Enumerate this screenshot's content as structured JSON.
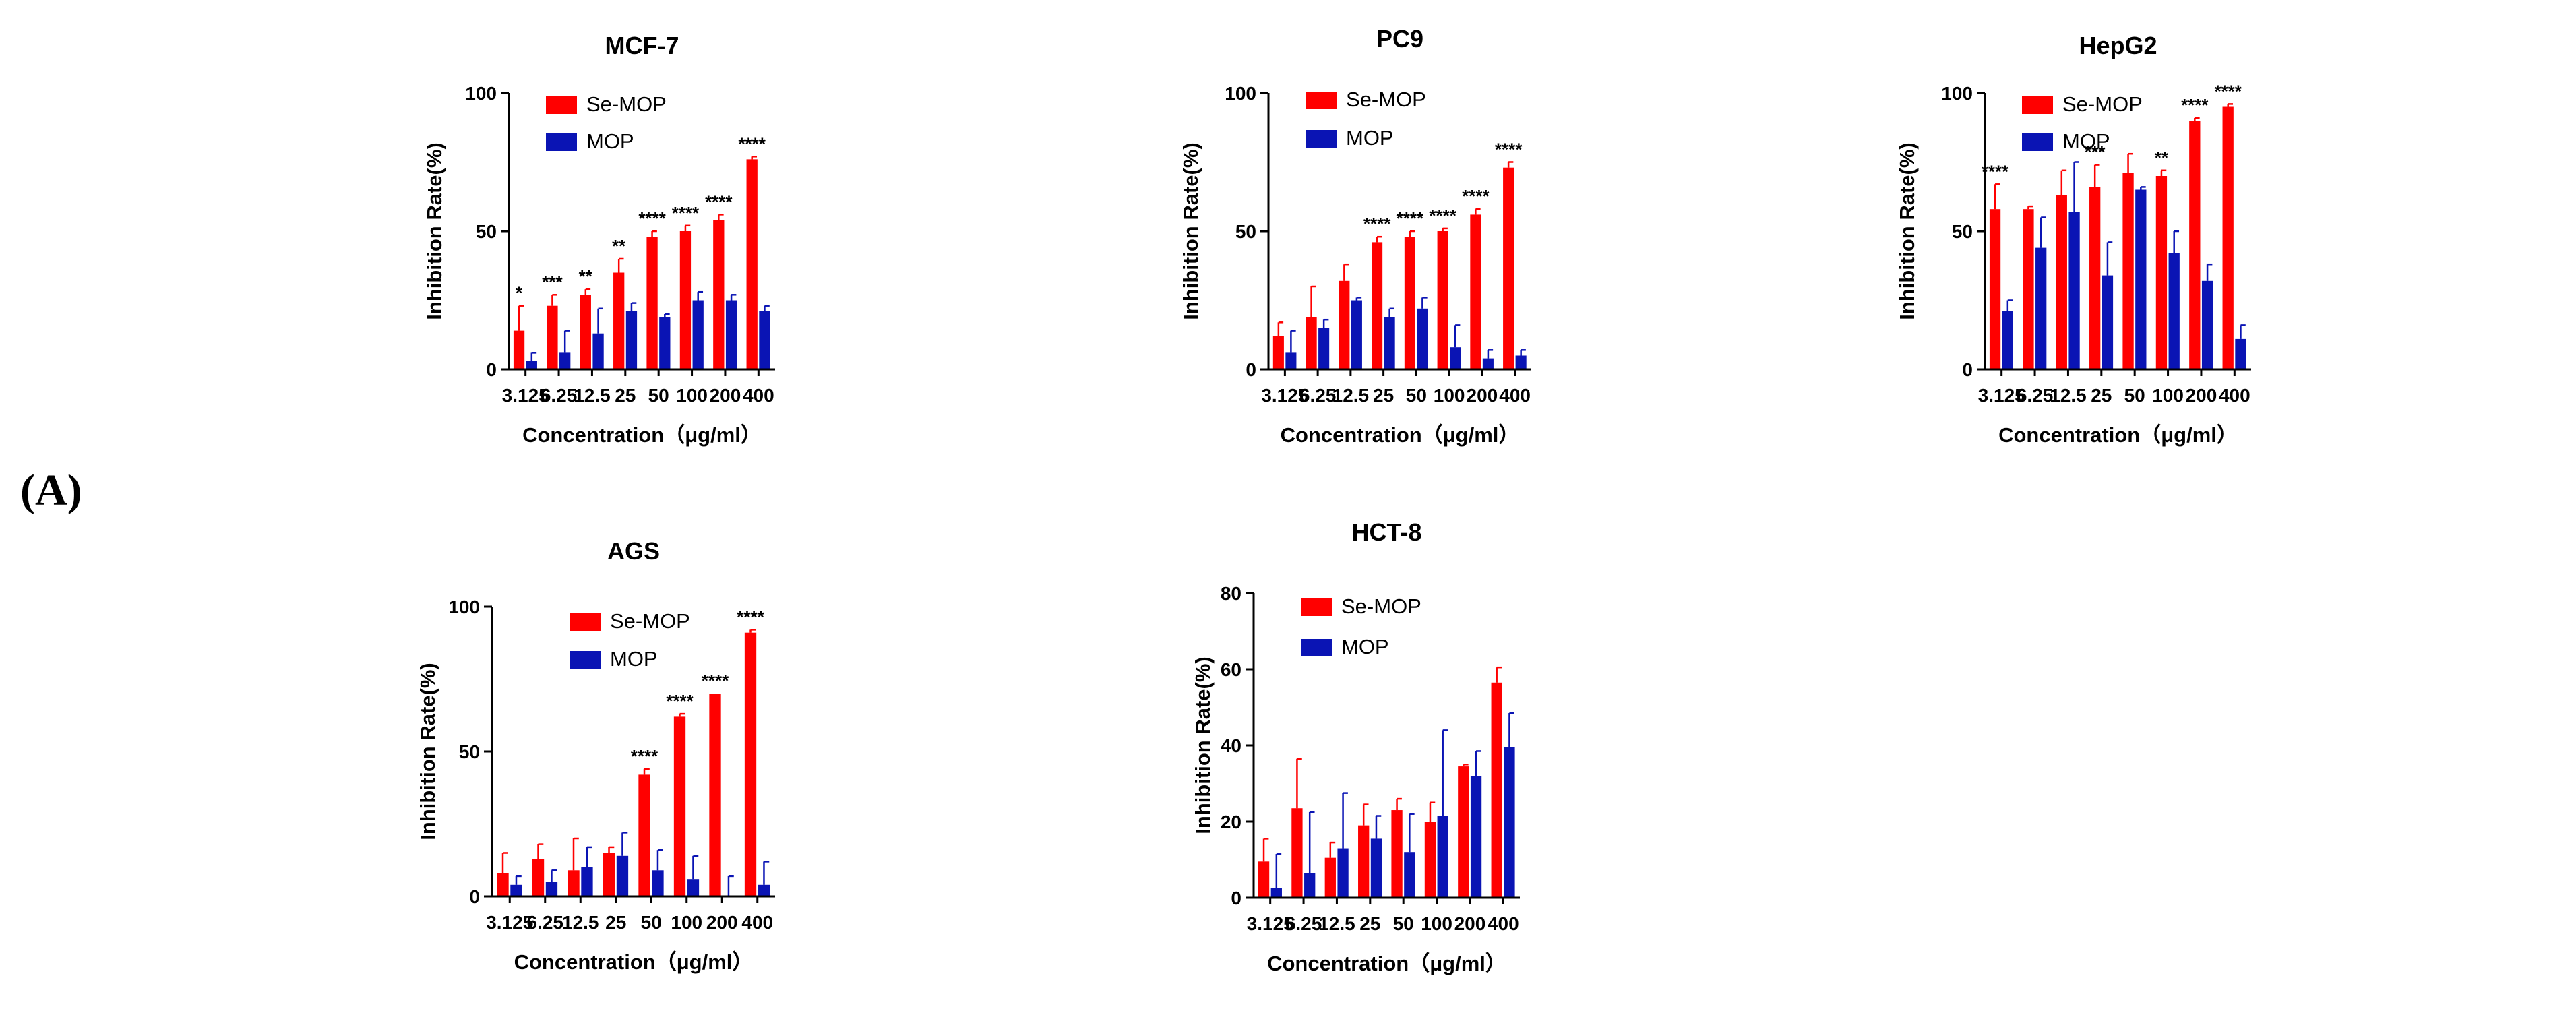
{
  "panel_label": "(A)",
  "colors": {
    "se_mop": "#ff0000",
    "mop": "#0a14b4",
    "axis": "#000000"
  },
  "chart_data": [
    {
      "type": "bar",
      "title": "MCF-7",
      "xlabel": "Concentration（μg/ml）",
      "ylabel": "Inhibition Rate(%)",
      "ylim": [
        0,
        100
      ],
      "yticks": [
        0,
        50,
        100
      ],
      "categories": [
        "3.125",
        "6.25",
        "12.5",
        "25",
        "50",
        "100",
        "200",
        "400"
      ],
      "series": [
        {
          "name": "Se-MOP",
          "values": [
            14,
            23,
            27,
            35,
            48,
            50,
            54,
            76
          ],
          "errors": [
            9,
            4,
            2,
            5,
            2,
            2,
            2,
            1
          ]
        },
        {
          "name": "MOP",
          "values": [
            3,
            6,
            13,
            21,
            19,
            25,
            25,
            21
          ],
          "errors": [
            3,
            8,
            9,
            3,
            1,
            3,
            2,
            2
          ]
        }
      ],
      "significance": [
        "*",
        "***",
        "**",
        "**",
        "****",
        "****",
        "****",
        "****"
      ]
    },
    {
      "type": "bar",
      "title": "PC9",
      "xlabel": "Concentration（μg/ml）",
      "ylabel": "Inhibition Rate(%)",
      "ylim": [
        0,
        100
      ],
      "yticks": [
        0,
        50,
        100
      ],
      "categories": [
        "3.125",
        "6.25",
        "12.5",
        "25",
        "50",
        "100",
        "200",
        "400"
      ],
      "series": [
        {
          "name": "Se-MOP",
          "values": [
            12,
            19,
            32,
            46,
            48,
            50,
            56,
            73
          ],
          "errors": [
            5,
            11,
            6,
            2,
            2,
            1,
            2,
            2
          ]
        },
        {
          "name": "MOP",
          "values": [
            6,
            15,
            25,
            19,
            22,
            8,
            4,
            5
          ],
          "errors": [
            8,
            3,
            1,
            3,
            4,
            8,
            3,
            2
          ]
        }
      ],
      "significance": [
        "",
        "",
        "",
        "****",
        "****",
        "****",
        "****",
        "****"
      ]
    },
    {
      "type": "bar",
      "title": "HepG2",
      "xlabel": "Concentration（μg/ml）",
      "ylabel": "Inhibition Rate(%)",
      "ylim": [
        0,
        100
      ],
      "yticks": [
        0,
        50,
        100
      ],
      "categories": [
        "3.125",
        "6.25",
        "12.5",
        "25",
        "50",
        "100",
        "200",
        "400"
      ],
      "series": [
        {
          "name": "Se-MOP",
          "values": [
            58,
            58,
            63,
            66,
            71,
            70,
            90,
            95
          ],
          "errors": [
            9,
            1,
            9,
            8,
            7,
            2,
            1,
            1
          ]
        },
        {
          "name": "MOP",
          "values": [
            21,
            44,
            57,
            34,
            65,
            42,
            32,
            11
          ],
          "errors": [
            4,
            11,
            18,
            12,
            1,
            8,
            6,
            5
          ]
        }
      ],
      "significance": [
        "****",
        "",
        "",
        "***",
        "",
        "**",
        "****",
        "****"
      ]
    },
    {
      "type": "bar",
      "title": "AGS",
      "xlabel": "Concentration（μg/ml）",
      "ylabel": "Inhibition Rate(%)",
      "ylim": [
        0,
        100
      ],
      "yticks": [
        0,
        50,
        100
      ],
      "categories": [
        "3.125",
        "6.25",
        "12.5",
        "25",
        "50",
        "100",
        "200",
        "400"
      ],
      "series": [
        {
          "name": "Se-MOP",
          "values": [
            8,
            13,
            9,
            15,
            42,
            62,
            70,
            91
          ],
          "errors": [
            7,
            5,
            11,
            2,
            2,
            1,
            0,
            1
          ]
        },
        {
          "name": "MOP",
          "values": [
            4,
            5,
            10,
            14,
            9,
            6,
            0,
            4
          ],
          "errors": [
            3,
            4,
            7,
            8,
            7,
            8,
            7,
            8
          ]
        }
      ],
      "significance": [
        "",
        "",
        "",
        "",
        "****",
        "****",
        "****",
        "****"
      ]
    },
    {
      "type": "bar",
      "title": "HCT-8",
      "xlabel": "Concentration（μg/ml）",
      "ylabel": "Inhibition Rate(%)",
      "ylim": [
        0,
        80
      ],
      "yticks": [
        0,
        20,
        40,
        60,
        80
      ],
      "categories": [
        "3.125",
        "6.25",
        "12.5",
        "25",
        "50",
        "100",
        "200",
        "400"
      ],
      "series": [
        {
          "name": "Se-MOP",
          "values": [
            9.5,
            23.5,
            10.5,
            19,
            23,
            20,
            34.5,
            56.5
          ],
          "errors": [
            6,
            13,
            4,
            5.5,
            3,
            5,
            0.5,
            4
          ]
        },
        {
          "name": "MOP",
          "values": [
            2.5,
            6.5,
            13,
            15.5,
            12,
            21.5,
            32,
            39.5
          ],
          "errors": [
            9,
            16,
            14.5,
            6,
            10,
            22.5,
            6.5,
            9
          ]
        }
      ],
      "significance": [
        "",
        "",
        "",
        "",
        "",
        "",
        "",
        ""
      ]
    }
  ]
}
